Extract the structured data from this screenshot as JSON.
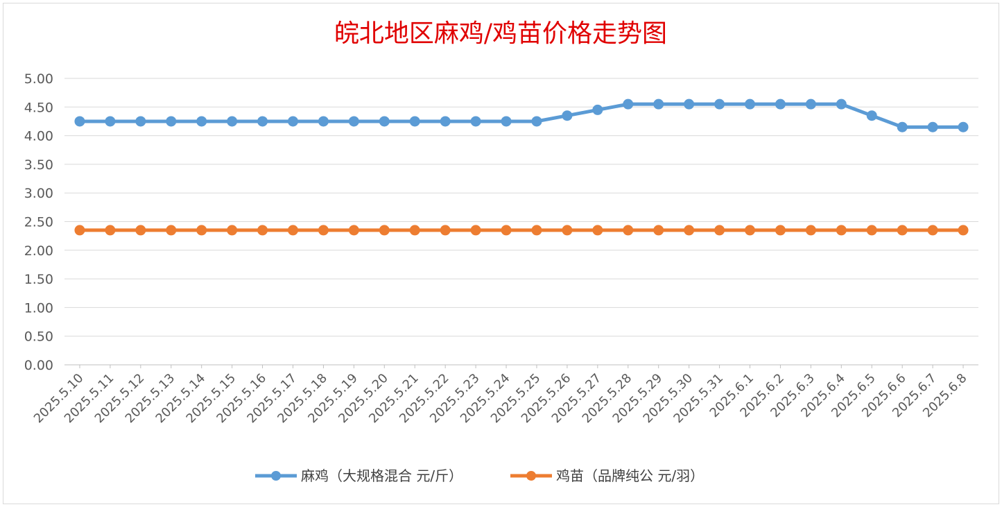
{
  "chart_data": {
    "type": "line",
    "title": "皖北地区麻鸡/鸡苗价格走势图",
    "categories": [
      "2025.5.10",
      "2025.5.11",
      "2025.5.12",
      "2025.5.13",
      "2025.5.14",
      "2025.5.15",
      "2025.5.16",
      "2025.5.17",
      "2025.5.18",
      "2025.5.19",
      "2025.5.20",
      "2025.5.21",
      "2025.5.22",
      "2025.5.23",
      "2025.5.24",
      "2025.5.25",
      "2025.5.26",
      "2025.5.27",
      "2025.5.28",
      "2025.5.29",
      "2025.5.30",
      "2025.5.31",
      "2025.6.1",
      "2025.6.2",
      "2025.6.3",
      "2025.6.4",
      "2025.6.5",
      "2025.6.6",
      "2025.6.7",
      "2025.6.8"
    ],
    "series": [
      {
        "name": "麻鸡（大规格混合 元/斤）",
        "color": "#5b9bd5",
        "values": [
          4.25,
          4.25,
          4.25,
          4.25,
          4.25,
          4.25,
          4.25,
          4.25,
          4.25,
          4.25,
          4.25,
          4.25,
          4.25,
          4.25,
          4.25,
          4.25,
          4.35,
          4.45,
          4.55,
          4.55,
          4.55,
          4.55,
          4.55,
          4.55,
          4.55,
          4.55,
          4.35,
          4.15,
          4.15,
          4.15
        ]
      },
      {
        "name": "鸡苗（品牌纯公 元/羽）",
        "color": "#ed7d31",
        "values": [
          2.35,
          2.35,
          2.35,
          2.35,
          2.35,
          2.35,
          2.35,
          2.35,
          2.35,
          2.35,
          2.35,
          2.35,
          2.35,
          2.35,
          2.35,
          2.35,
          2.35,
          2.35,
          2.35,
          2.35,
          2.35,
          2.35,
          2.35,
          2.35,
          2.35,
          2.35,
          2.35,
          2.35,
          2.35,
          2.35
        ]
      }
    ],
    "yticks": [
      "0.00",
      "0.50",
      "1.00",
      "1.50",
      "2.00",
      "2.50",
      "3.00",
      "3.50",
      "4.00",
      "4.50",
      "5.00"
    ],
    "ylim": [
      0,
      5
    ],
    "grid": true,
    "legend_position": "bottom"
  }
}
